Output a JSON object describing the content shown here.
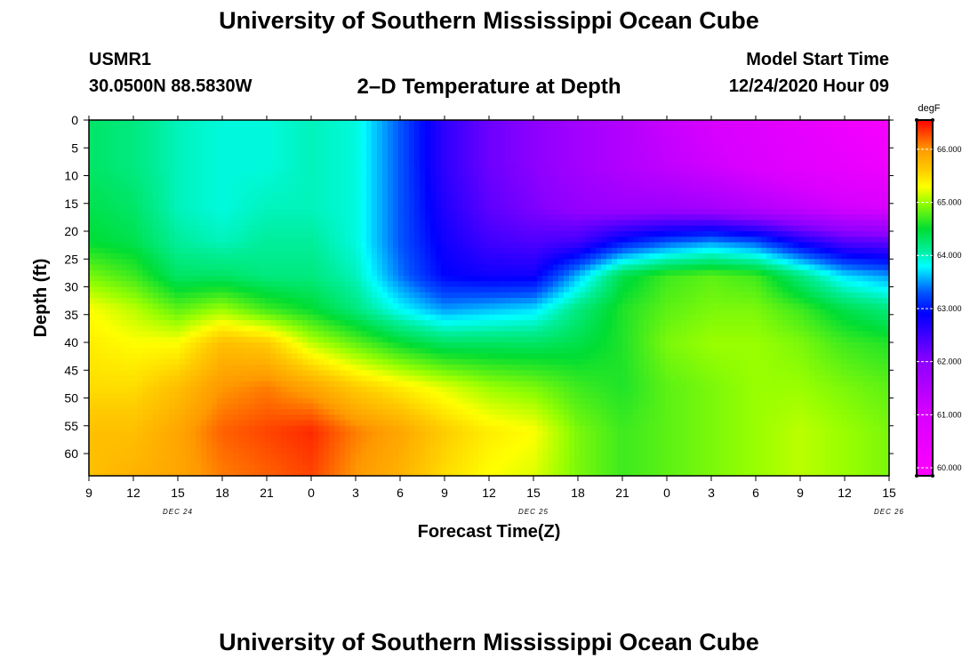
{
  "header": {
    "title": "University of Southern Mississippi Ocean Cube",
    "station_id": "USMR1",
    "coords": "30.0500N 88.5830W",
    "chart_title": "2–D Temperature at Depth",
    "model_start_label": "Model Start Time",
    "model_start_value": "12/24/2020 Hour 09"
  },
  "footer": {
    "title": "University of Southern Mississippi Ocean Cube"
  },
  "chart_data": {
    "type": "heatmap",
    "title": "2–D Temperature at Depth",
    "xlabel": "Forecast Time(Z)",
    "ylabel": "Depth (ft)",
    "x_hours": [
      0,
      3,
      6,
      9,
      12,
      15,
      18,
      21,
      24,
      27,
      30,
      33,
      36,
      39,
      42,
      45,
      48,
      51,
      54
    ],
    "x_tick_labels": [
      "9",
      "12",
      "15",
      "18",
      "21",
      "0",
      "3",
      "6",
      "9",
      "12",
      "15",
      "18",
      "21",
      "0",
      "3",
      "6",
      "9",
      "12",
      "15"
    ],
    "x_date_labels": [
      {
        "hour": 6,
        "label": "DEC 24"
      },
      {
        "hour": 30,
        "label": "DEC 25"
      },
      {
        "hour": 54,
        "label": "DEC 26"
      }
    ],
    "xlim": [
      0,
      54
    ],
    "y_ticks": [
      0,
      5,
      10,
      15,
      20,
      25,
      30,
      35,
      40,
      45,
      50,
      55,
      60
    ],
    "ylim": [
      0,
      64
    ],
    "depths": [
      0,
      8,
      16,
      22,
      28,
      34,
      40,
      48,
      56,
      64
    ],
    "values": [
      [
        64.3,
        64.2,
        64.0,
        63.9,
        63.9,
        64.0,
        63.9,
        63.3,
        62.6,
        62.2,
        62.0,
        61.7,
        61.5,
        61.2,
        61.0,
        60.8,
        60.6,
        60.3,
        60.1
      ],
      [
        64.3,
        64.2,
        64.0,
        63.9,
        63.9,
        64.0,
        63.9,
        63.3,
        62.6,
        62.2,
        62.0,
        61.7,
        61.5,
        61.3,
        61.1,
        60.9,
        60.7,
        60.5,
        60.3
      ],
      [
        64.4,
        64.3,
        64.0,
        63.9,
        64.0,
        64.0,
        63.9,
        63.3,
        62.7,
        62.3,
        62.1,
        61.9,
        61.8,
        61.8,
        61.7,
        61.5,
        61.3,
        61.1,
        61.0
      ],
      [
        64.5,
        64.4,
        64.1,
        64.0,
        64.1,
        64.1,
        63.9,
        63.3,
        62.8,
        62.5,
        62.4,
        62.5,
        63.0,
        63.3,
        63.5,
        63.3,
        62.8,
        62.4,
        62.3
      ],
      [
        64.9,
        64.7,
        64.3,
        64.3,
        64.2,
        64.2,
        64.0,
        63.4,
        62.9,
        62.8,
        62.8,
        63.6,
        64.4,
        64.7,
        64.8,
        64.7,
        64.2,
        63.7,
        63.5
      ],
      [
        65.3,
        65.1,
        64.8,
        65.0,
        64.7,
        64.5,
        64.2,
        63.8,
        63.5,
        63.6,
        63.7,
        64.2,
        64.6,
        64.8,
        64.9,
        64.9,
        64.7,
        64.4,
        64.2
      ],
      [
        65.4,
        65.3,
        65.3,
        65.7,
        65.6,
        65.1,
        64.8,
        64.5,
        64.3,
        64.3,
        64.3,
        64.4,
        64.6,
        64.9,
        65.0,
        65.0,
        64.9,
        64.7,
        64.6
      ],
      [
        65.5,
        65.5,
        65.7,
        66.0,
        66.1,
        65.9,
        65.6,
        65.4,
        65.2,
        65.0,
        64.9,
        64.7,
        64.6,
        64.8,
        64.9,
        65.0,
        65.0,
        64.9,
        64.8
      ],
      [
        65.7,
        65.7,
        65.9,
        66.2,
        66.3,
        66.4,
        66.1,
        65.9,
        65.6,
        65.4,
        65.3,
        64.9,
        64.7,
        64.8,
        64.9,
        65.0,
        65.1,
        65.0,
        64.9
      ],
      [
        65.7,
        65.8,
        65.9,
        66.1,
        66.2,
        66.3,
        66.0,
        65.8,
        65.5,
        65.3,
        65.2,
        64.9,
        64.7,
        64.8,
        64.9,
        65.0,
        65.1,
        65.0,
        64.9
      ]
    ],
    "colorbar": {
      "unit": "degF",
      "min": 59.85,
      "max": 66.55,
      "tick_values": [
        60,
        61,
        62,
        63,
        64,
        65,
        66
      ],
      "tick_labels": [
        "60.000",
        "61.000",
        "62.000",
        "63.000",
        "64.000",
        "65.000",
        "66.000"
      ]
    },
    "colormap": [
      [
        59.85,
        "#ff00ff"
      ],
      [
        61.0,
        "#d800ff"
      ],
      [
        62.0,
        "#8c00ff"
      ],
      [
        62.9,
        "#0000ff"
      ],
      [
        63.3,
        "#0055ff"
      ],
      [
        63.8,
        "#00ffff"
      ],
      [
        64.1,
        "#00ee99"
      ],
      [
        64.5,
        "#00dd33"
      ],
      [
        65.0,
        "#99ff00"
      ],
      [
        65.3,
        "#ffff00"
      ],
      [
        65.6,
        "#ffcc00"
      ],
      [
        66.0,
        "#ff9900"
      ],
      [
        66.3,
        "#ff4400"
      ],
      [
        66.55,
        "#ff0000"
      ]
    ]
  }
}
